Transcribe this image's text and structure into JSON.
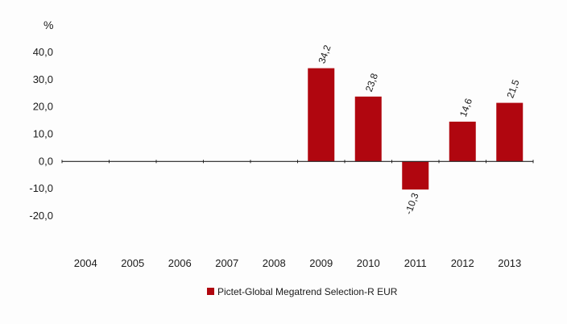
{
  "chart_data": {
    "type": "bar",
    "title": "",
    "unit_label": "%",
    "xlabel": "",
    "ylabel": "%",
    "categories": [
      "2004",
      "2005",
      "2006",
      "2007",
      "2008",
      "2009",
      "2010",
      "2011",
      "2012",
      "2013"
    ],
    "series": [
      {
        "name": "Pictet-Global Megatrend Selection-R EUR",
        "color": "#b0060f",
        "values": [
          null,
          null,
          null,
          null,
          null,
          34.2,
          23.8,
          -10.3,
          14.6,
          21.5
        ],
        "labels": [
          "",
          "",
          "",
          "",
          "",
          "34,2",
          "23,8",
          "-10,3",
          "14,6",
          "21,5"
        ]
      }
    ],
    "ylim": [
      -20,
      40
    ],
    "yticks": [
      40,
      30,
      20,
      10,
      0,
      -10,
      -20
    ],
    "ytick_labels": [
      "40,0",
      "30,0",
      "20,0",
      "10,0",
      "0,0",
      "-10,0",
      "-20,0"
    ],
    "grid": false,
    "legend_position": "bottom-center"
  }
}
